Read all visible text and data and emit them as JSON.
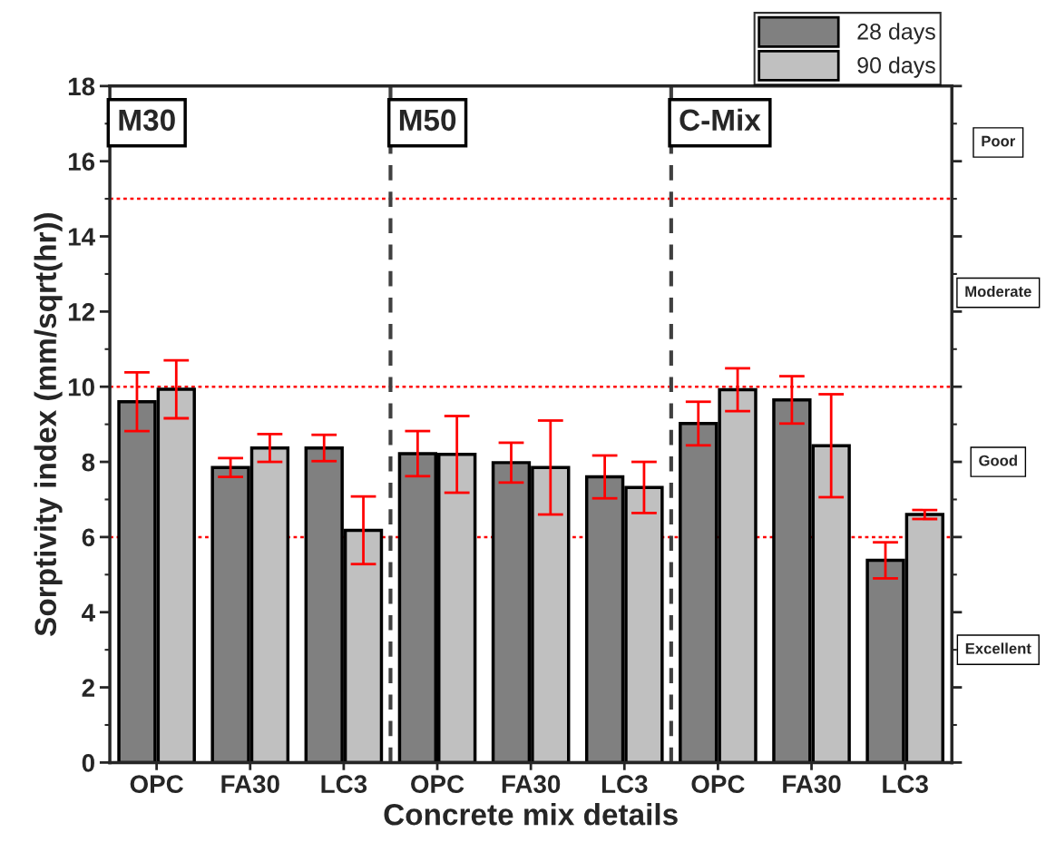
{
  "chart_data": {
    "type": "bar",
    "xlabel": "Concrete mix details",
    "ylabel": "Sorptivity index (mm/sqrt(hr))",
    "categories": [
      "OPC",
      "FA30",
      "LC3",
      "OPC",
      "FA30",
      "LC3",
      "OPC",
      "FA30",
      "LC3"
    ],
    "series": [
      {
        "name": "28 days",
        "color": "#808080",
        "values": [
          9.6,
          7.85,
          8.37,
          8.22,
          7.98,
          7.6,
          9.02,
          9.65,
          5.38
        ],
        "errors": [
          0.78,
          0.25,
          0.35,
          0.6,
          0.53,
          0.57,
          0.58,
          0.63,
          0.48
        ]
      },
      {
        "name": "90 days",
        "color": "#c0c0c0",
        "values": [
          9.93,
          8.37,
          6.18,
          8.2,
          7.85,
          7.32,
          9.92,
          8.43,
          6.6
        ],
        "errors": [
          0.77,
          0.37,
          0.9,
          1.02,
          1.25,
          0.68,
          0.57,
          1.37,
          0.12
        ]
      }
    ],
    "ylim": [
      0,
      18
    ],
    "yticks": [
      0,
      2,
      4,
      6,
      8,
      10,
      12,
      14,
      16,
      18
    ],
    "ref_lines": [
      {
        "axis": "y",
        "value": 15,
        "color": "#ff0000",
        "line_style": "dotted"
      },
      {
        "axis": "y",
        "value": 10,
        "color": "#ff0000",
        "line_style": "dotted"
      },
      {
        "axis": "y",
        "value": 6,
        "color": "#ff0000",
        "line_style": "dotted"
      }
    ],
    "annotations": [
      "M30",
      "M50",
      "C-Mix",
      "Poor",
      "Moderate",
      "Good",
      "Excellent"
    ],
    "legend": "top right",
    "grid": false
  }
}
